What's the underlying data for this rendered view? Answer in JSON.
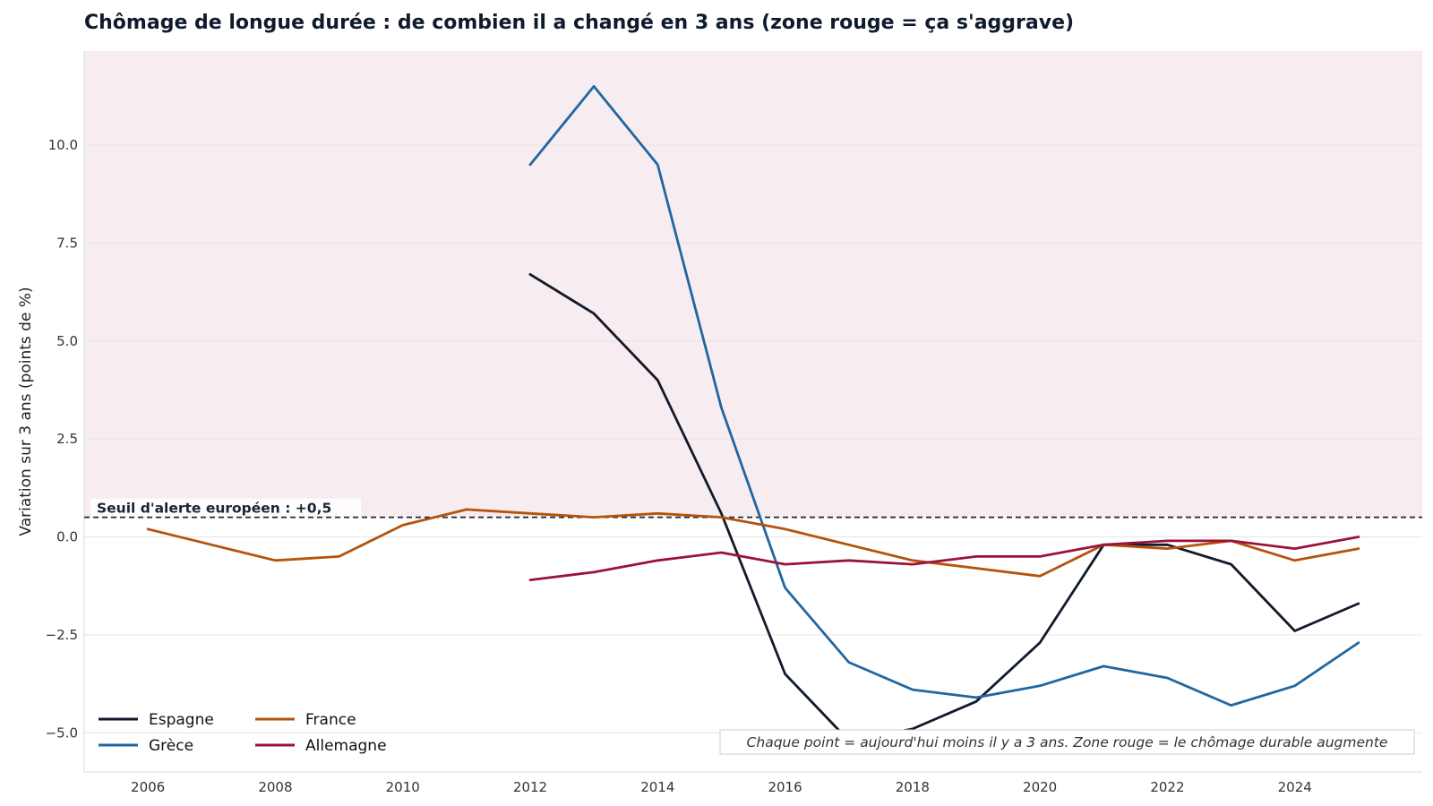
{
  "chart_data": {
    "type": "line",
    "title": "Chômage de longue durée : de combien il a changé en 3 ans (zone rouge = ça s'aggrave)",
    "xlabel": "",
    "ylabel": "Variation sur 3 ans (points de %)",
    "xlim": [
      2005,
      2026
    ],
    "ylim": [
      -6.0,
      12.4
    ],
    "xticks": [
      2006,
      2008,
      2010,
      2012,
      2014,
      2016,
      2018,
      2020,
      2022,
      2024
    ],
    "yticks": [
      -5.0,
      -2.5,
      0.0,
      2.5,
      5.0,
      7.5,
      10.0
    ],
    "ytick_labels": [
      "−5.0",
      "−2.5",
      "0.0",
      "2.5",
      "5.0",
      "7.5",
      "10.0"
    ],
    "grid": true,
    "red_zone_from": 0.5,
    "threshold": {
      "value": 0.5,
      "label": "Seuil d'alerte européen : +0,5"
    },
    "annotation": "Chaque point = aujourd'hui moins il y a 3 ans. Zone rouge = le chômage durable augmente",
    "legend_position": "bottom-left",
    "series": [
      {
        "name": "Espagne",
        "color": "#111a2b",
        "x": [
          2012,
          2013,
          2014,
          2015,
          2016,
          2017,
          2018,
          2019,
          2020,
          2021,
          2022,
          2023,
          2024,
          2025
        ],
        "y": [
          6.7,
          5.7,
          4.0,
          0.6,
          -3.5,
          -5.2,
          -4.9,
          -4.2,
          -2.7,
          -0.2,
          -0.2,
          -0.7,
          -2.4,
          -1.7
        ]
      },
      {
        "name": "Grèce",
        "color": "#2166a0",
        "x": [
          2012,
          2013,
          2014,
          2015,
          2016,
          2017,
          2018,
          2019,
          2020,
          2021,
          2022,
          2023,
          2024,
          2025
        ],
        "y": [
          9.5,
          11.5,
          9.5,
          3.3,
          -1.3,
          -3.2,
          -3.9,
          -4.1,
          -3.8,
          -3.3,
          -3.6,
          -4.3,
          -3.8,
          -2.7
        ]
      },
      {
        "name": "France",
        "color": "#b5520c",
        "x": [
          2006,
          2007,
          2008,
          2009,
          2010,
          2011,
          2012,
          2013,
          2014,
          2015,
          2016,
          2017,
          2018,
          2019,
          2020,
          2021,
          2022,
          2023,
          2024,
          2025
        ],
        "y": [
          0.2,
          -0.2,
          -0.6,
          -0.5,
          0.3,
          0.7,
          0.6,
          0.5,
          0.6,
          0.5,
          0.2,
          -0.2,
          -0.6,
          -0.8,
          -1.0,
          -0.2,
          -0.3,
          -0.1,
          -0.6,
          -0.3
        ]
      },
      {
        "name": "Allemagne",
        "color": "#9b1239",
        "x": [
          2012,
          2013,
          2014,
          2015,
          2016,
          2017,
          2018,
          2019,
          2020,
          2021,
          2022,
          2023,
          2024,
          2025
        ],
        "y": [
          -1.1,
          -0.9,
          -0.6,
          -0.4,
          -0.7,
          -0.6,
          -0.7,
          -0.5,
          -0.5,
          -0.2,
          -0.1,
          -0.1,
          -0.3,
          0.0
        ]
      }
    ]
  }
}
